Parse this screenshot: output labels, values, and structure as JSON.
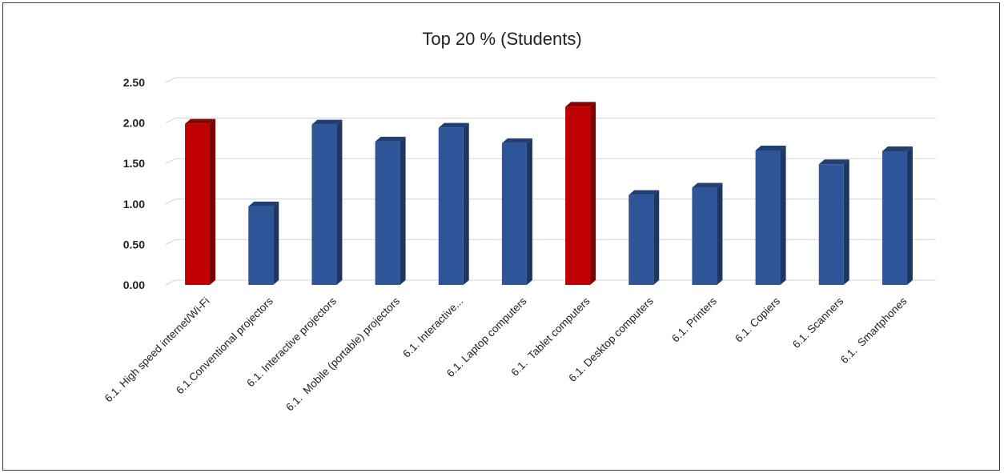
{
  "chart_data": {
    "type": "bar",
    "title": "Top 20 % (Students)",
    "xlabel": "",
    "ylabel": "",
    "ylim": [
      0,
      2.5
    ],
    "yticks": [
      "0.00",
      "0.50",
      "1.00",
      "1.50",
      "2.00",
      "2.50"
    ],
    "grid": true,
    "categories": [
      "6.1. High speed internet/Wi-Fi",
      "6.1.Conventional projectors",
      "6.1. Interactive projectors",
      "6.1.  Mobile (portable) projectors",
      "6.1. Interactive...",
      "6.1. Laptop computers",
      "6.1.  Tablet computers",
      "6.1. Desktop computers",
      "6.1. Printers",
      "6.1. Copiers",
      "6.1. Scanners",
      "6.1.  Smartphones"
    ],
    "values": [
      1.99,
      0.97,
      1.98,
      1.77,
      1.94,
      1.75,
      2.2,
      1.11,
      1.2,
      1.66,
      1.49,
      1.65
    ],
    "highlight": [
      0,
      6
    ],
    "colors": {
      "bar": "#2e5597",
      "bar_top": "#203f75",
      "bar_side": "#1d3762",
      "highlight": "#c00000",
      "highlight_top": "#8e0000",
      "highlight_side": "#7a0000",
      "grid": "#d4d4d4"
    }
  }
}
